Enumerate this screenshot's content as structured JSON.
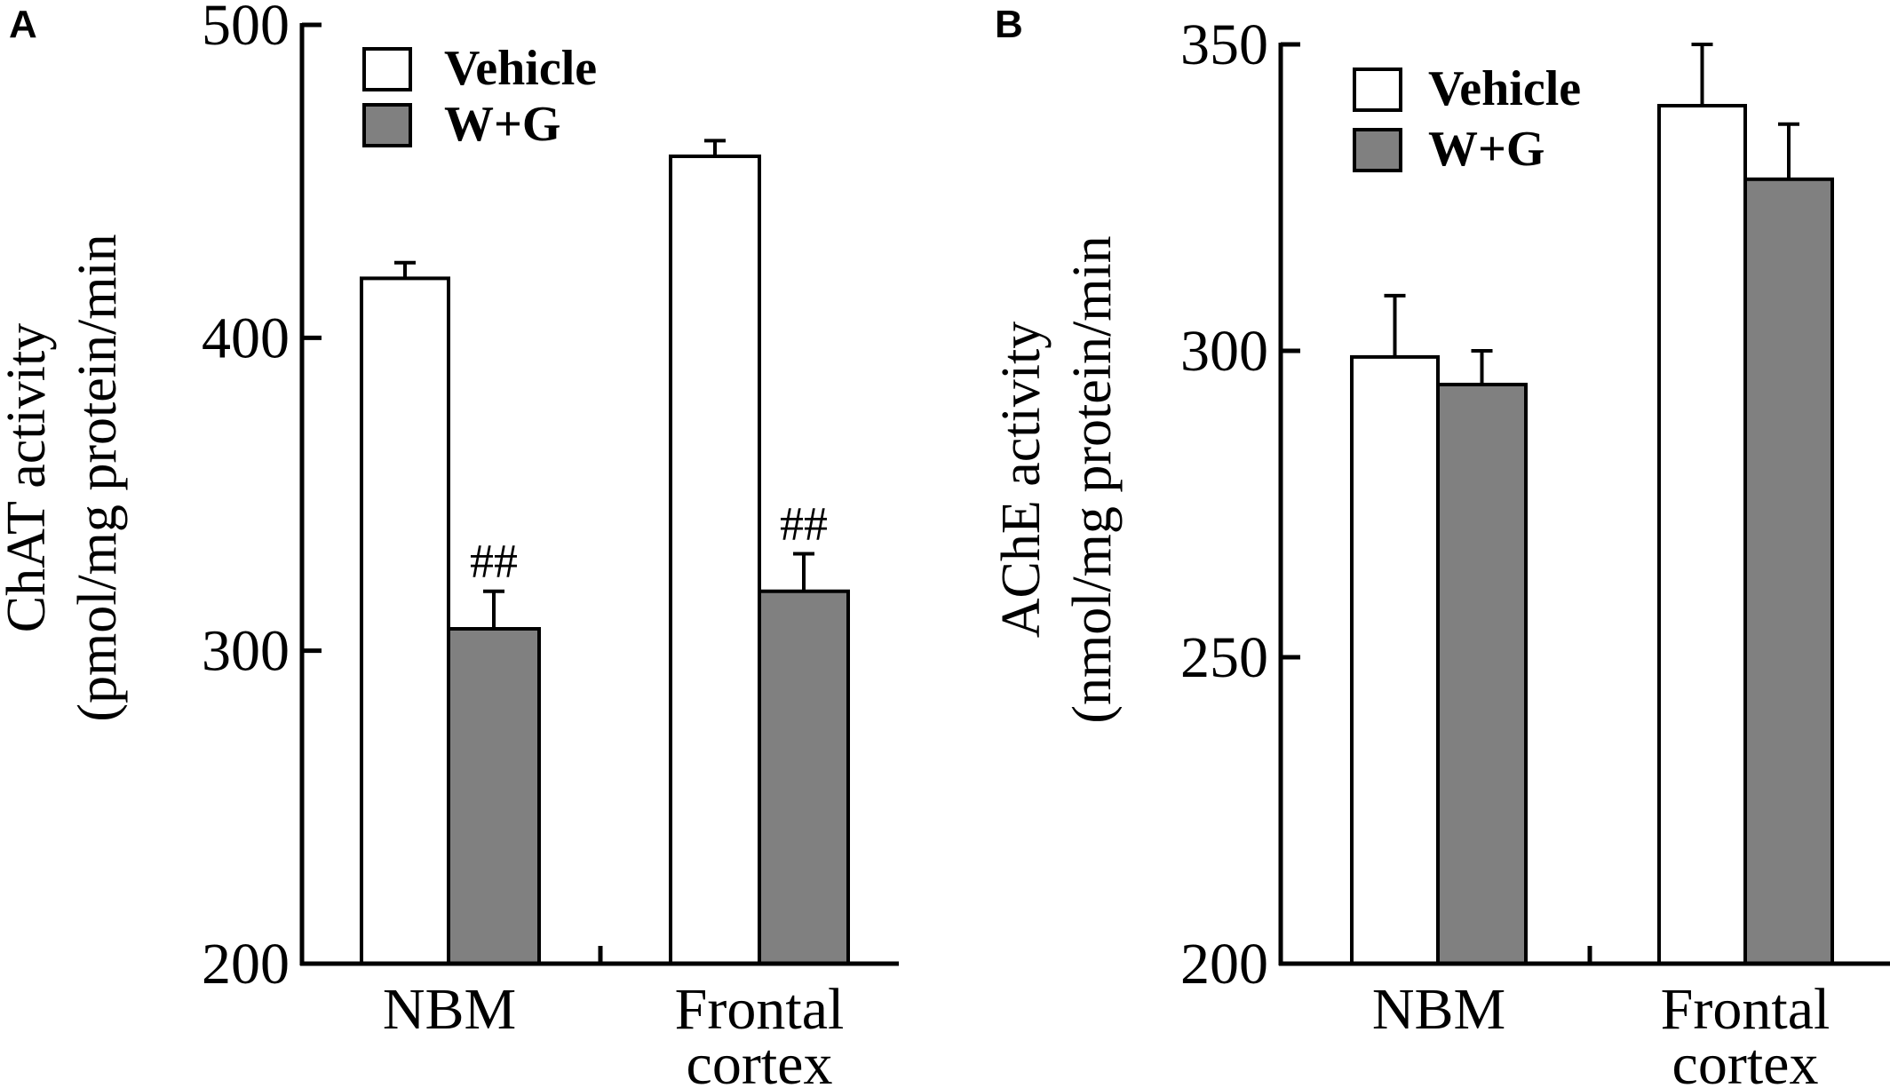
{
  "colors": {
    "vehicle": "#ffffff",
    "wg": "#808080",
    "stroke": "#000000"
  },
  "chart_data": [
    {
      "panel": "A",
      "type": "bar",
      "categories": [
        [
          "NBM"
        ],
        [
          "Frontal",
          "cortex"
        ]
      ],
      "series": [
        {
          "name": "Vehicle",
          "values": [
            419,
            458
          ],
          "errors": [
            5,
            5
          ]
        },
        {
          "name": "W+G",
          "values": [
            307,
            319
          ],
          "errors": [
            12,
            12
          ]
        }
      ],
      "annotations": [
        {
          "category": 0,
          "series": 1,
          "text": "##"
        },
        {
          "category": 1,
          "series": 1,
          "text": "##"
        }
      ],
      "ylabel": [
        "ChAT activity",
        "(pmol/mg protein/min"
      ],
      "ylim": [
        200,
        500
      ],
      "yticks": [
        200,
        300,
        400,
        500
      ],
      "legend": "top-left"
    },
    {
      "panel": "B",
      "type": "bar",
      "categories": [
        [
          "NBM"
        ],
        [
          "Frontal",
          "cortex"
        ]
      ],
      "series": [
        {
          "name": "Vehicle",
          "values": [
            299,
            340
          ],
          "errors": [
            10,
            10
          ]
        },
        {
          "name": "W+G",
          "values": [
            294.5,
            328
          ],
          "errors": [
            5.5,
            9
          ]
        }
      ],
      "annotations": [],
      "ylabel": [
        "AChE activity",
        "(nmol/mg protein/min"
      ],
      "ylim": [
        200,
        350
      ],
      "yticks": [
        200,
        250,
        300,
        350
      ],
      "legend": "top-left"
    }
  ]
}
